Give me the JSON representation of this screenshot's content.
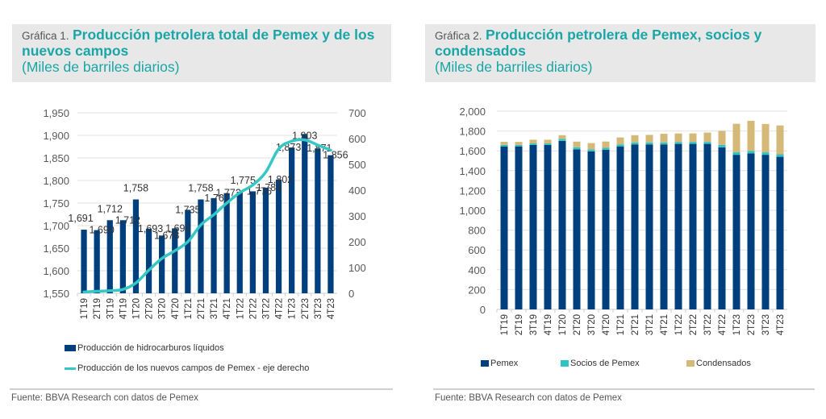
{
  "colors": {
    "accent": "#1aa6a6",
    "pemex": "#003f7d",
    "line": "#35c6c6",
    "socios": "#2ec4c4",
    "condensados": "#d4b978",
    "grid": "#e2e2e2",
    "tick_text": "#595959"
  },
  "panel1": {
    "num": "Gráfica 1.",
    "title": "Producción petrolera total de Pemex y de los nuevos campos",
    "subtitle": "(Miles de barriles diarios)",
    "source": "Fuente: BBVA Research con datos de Pemex"
  },
  "panel2": {
    "num": "Gráfica 2.",
    "title": "Producción petrolera de Pemex, socios y condensados",
    "subtitle": "(Miles de barriles diarios)",
    "source": "Fuente: BBVA Research con datos de Pemex"
  },
  "chart_data": [
    {
      "type": "bar",
      "title": "Producción petrolera total de Pemex y de los nuevos campos",
      "categories": [
        "1T19",
        "2T19",
        "3T19",
        "4T19",
        "1T20",
        "2T20",
        "3T20",
        "4T20",
        "1T21",
        "2T21",
        "3T21",
        "4T21",
        "1T22",
        "2T22",
        "3T22",
        "4T22",
        "1T23",
        "2T23",
        "3T23",
        "4T23"
      ],
      "series": [
        {
          "name": "Producción de hidrocarburos líquidos",
          "type": "bar",
          "axis": "left",
          "values": [
            1691,
            1690,
            1712,
            1712,
            1758,
            1693,
            1678,
            1694,
            1735,
            1758,
            1761,
            1772,
            1775,
            1776,
            1784,
            1802,
            1873,
            1903,
            1871,
            1856
          ],
          "labels": [
            "1,691",
            "1,690",
            "1,712",
            "1,712",
            "1,758",
            "1,693",
            "1,678",
            "1,694",
            "1,735",
            "1,758",
            "1,761",
            "1,772",
            "1,775",
            "1,776",
            "1,784",
            "1,802",
            "1,873",
            "1,903",
            "1,871",
            "1,856"
          ]
        },
        {
          "name": "Producción de los nuevos campos de Pemex - eje derecho",
          "type": "line",
          "axis": "right",
          "values": [
            5,
            8,
            10,
            15,
            40,
            90,
            135,
            165,
            200,
            265,
            305,
            350,
            390,
            420,
            470,
            560,
            590,
            595,
            575,
            555
          ]
        }
      ],
      "y_left": {
        "range": [
          1550,
          1950
        ],
        "ticks": [
          "1,550",
          "1,600",
          "1,650",
          "1,700",
          "1,750",
          "1,800",
          "1,850",
          "1,900",
          "1,950"
        ]
      },
      "y_right": {
        "range": [
          0,
          700
        ],
        "ticks": [
          "0",
          "100",
          "200",
          "300",
          "400",
          "500",
          "600",
          "700"
        ]
      },
      "grid": true,
      "legend": "bottom"
    },
    {
      "type": "bar",
      "stacked": true,
      "title": "Producción petrolera de Pemex, socios y condensados",
      "categories": [
        "1T19",
        "2T19",
        "3T19",
        "4T19",
        "1T20",
        "2T20",
        "3T20",
        "4T20",
        "1T21",
        "2T21",
        "3T21",
        "4T21",
        "1T22",
        "2T22",
        "3T22",
        "4T22",
        "1T23",
        "2T23",
        "3T23",
        "4T23"
      ],
      "series": [
        {
          "name": "Pemex",
          "values": [
            1645,
            1645,
            1660,
            1660,
            1700,
            1615,
            1595,
            1610,
            1645,
            1665,
            1665,
            1665,
            1670,
            1670,
            1670,
            1635,
            1560,
            1575,
            1560,
            1540
          ]
        },
        {
          "name": "Socios de Pemex",
          "values": [
            15,
            15,
            15,
            15,
            20,
            20,
            20,
            20,
            20,
            20,
            20,
            20,
            20,
            20,
            20,
            25,
            25,
            25,
            25,
            25
          ]
        },
        {
          "name": "Condensados",
          "values": [
            31,
            30,
            37,
            37,
            38,
            58,
            63,
            64,
            70,
            73,
            76,
            87,
            85,
            86,
            94,
            142,
            288,
            303,
            286,
            291
          ]
        }
      ],
      "y": {
        "range": [
          0,
          2000
        ],
        "ticks": [
          "0",
          "200",
          "400",
          "600",
          "800",
          "1,000",
          "1,200",
          "1,400",
          "1,600",
          "1,800",
          "2,000"
        ]
      },
      "grid": true,
      "legend": "bottom"
    }
  ]
}
